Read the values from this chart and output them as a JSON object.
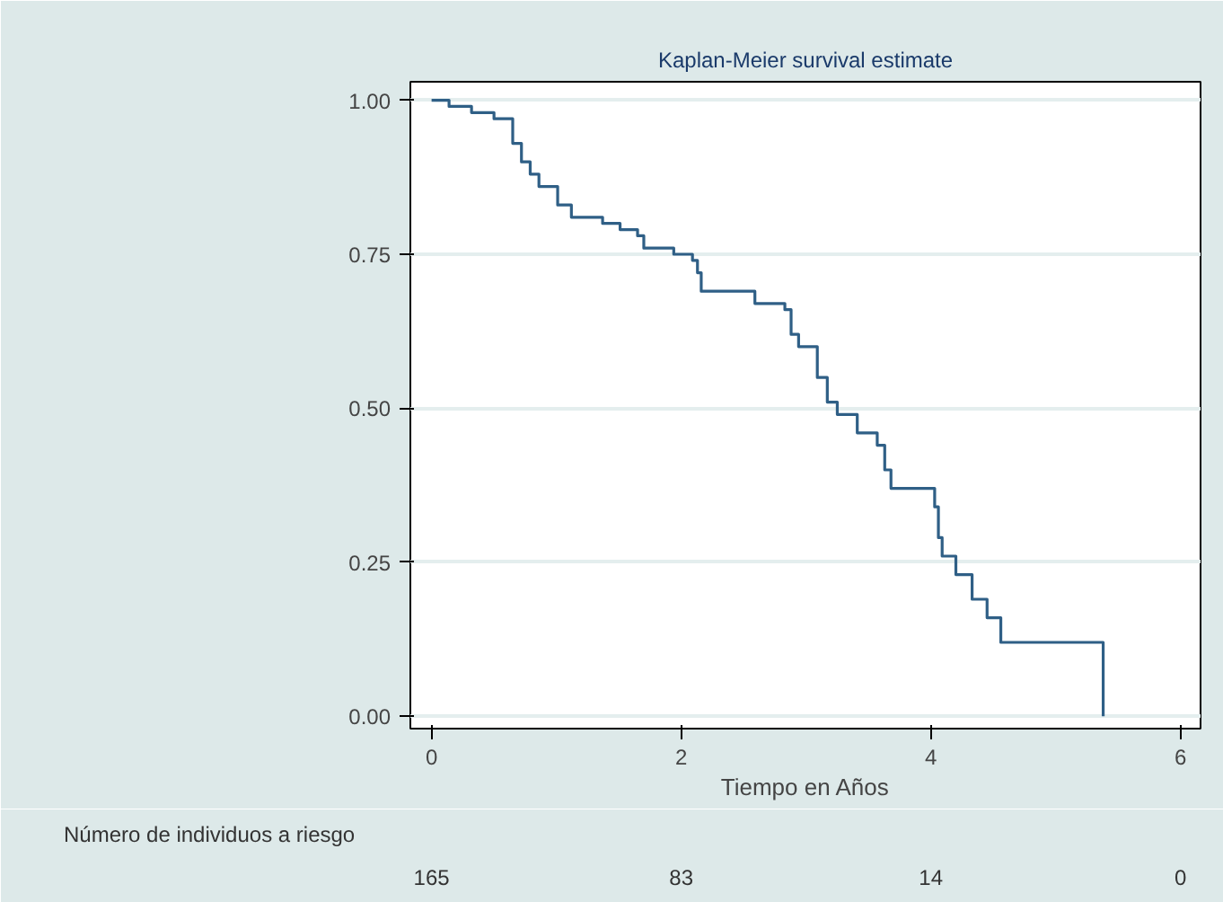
{
  "chart_data": {
    "type": "step",
    "title": "Kaplan-Meier survival estimate",
    "xlabel": "Tiempo en Años",
    "x": [
      0,
      0.14,
      0.32,
      0.5,
      0.65,
      0.72,
      0.79,
      0.86,
      1.01,
      1.12,
      1.37,
      1.51,
      1.65,
      1.7,
      1.94,
      2.09,
      2.13,
      2.16,
      2.59,
      2.83,
      2.88,
      2.94,
      3.09,
      3.17,
      3.25,
      3.41,
      3.57,
      3.63,
      3.68,
      4.03,
      4.06,
      4.09,
      4.2,
      4.33,
      4.45,
      4.56,
      4.63,
      5.38
    ],
    "series": [
      {
        "color": "#2f5f86",
        "values": [
          1.0,
          0.99,
          0.98,
          0.97,
          0.93,
          0.9,
          0.88,
          0.86,
          0.83,
          0.81,
          0.8,
          0.79,
          0.78,
          0.76,
          0.75,
          0.74,
          0.72,
          0.69,
          0.67,
          0.66,
          0.62,
          0.6,
          0.55,
          0.51,
          0.49,
          0.46,
          0.44,
          0.4,
          0.37,
          0.34,
          0.29,
          0.26,
          0.23,
          0.19,
          0.16,
          0.12,
          0.12,
          0.0
        ]
      }
    ],
    "xlim": [
      -0.17,
      6.16
    ],
    "ylim": [
      -0.02,
      1.03
    ],
    "xticks": [
      0,
      2,
      4,
      6
    ],
    "yticks": [
      {
        "value": 0,
        "label": "0.00"
      },
      {
        "value": 0.25,
        "label": "0.25"
      },
      {
        "value": 0.5,
        "label": "0.50"
      },
      {
        "value": 0.75,
        "label": "0.75"
      },
      {
        "value": 1,
        "label": "1.00"
      }
    ],
    "grid": "y",
    "annotations": [
      "Número de individuos a riesgo",
      "165",
      "83",
      "14",
      "0"
    ]
  }
}
